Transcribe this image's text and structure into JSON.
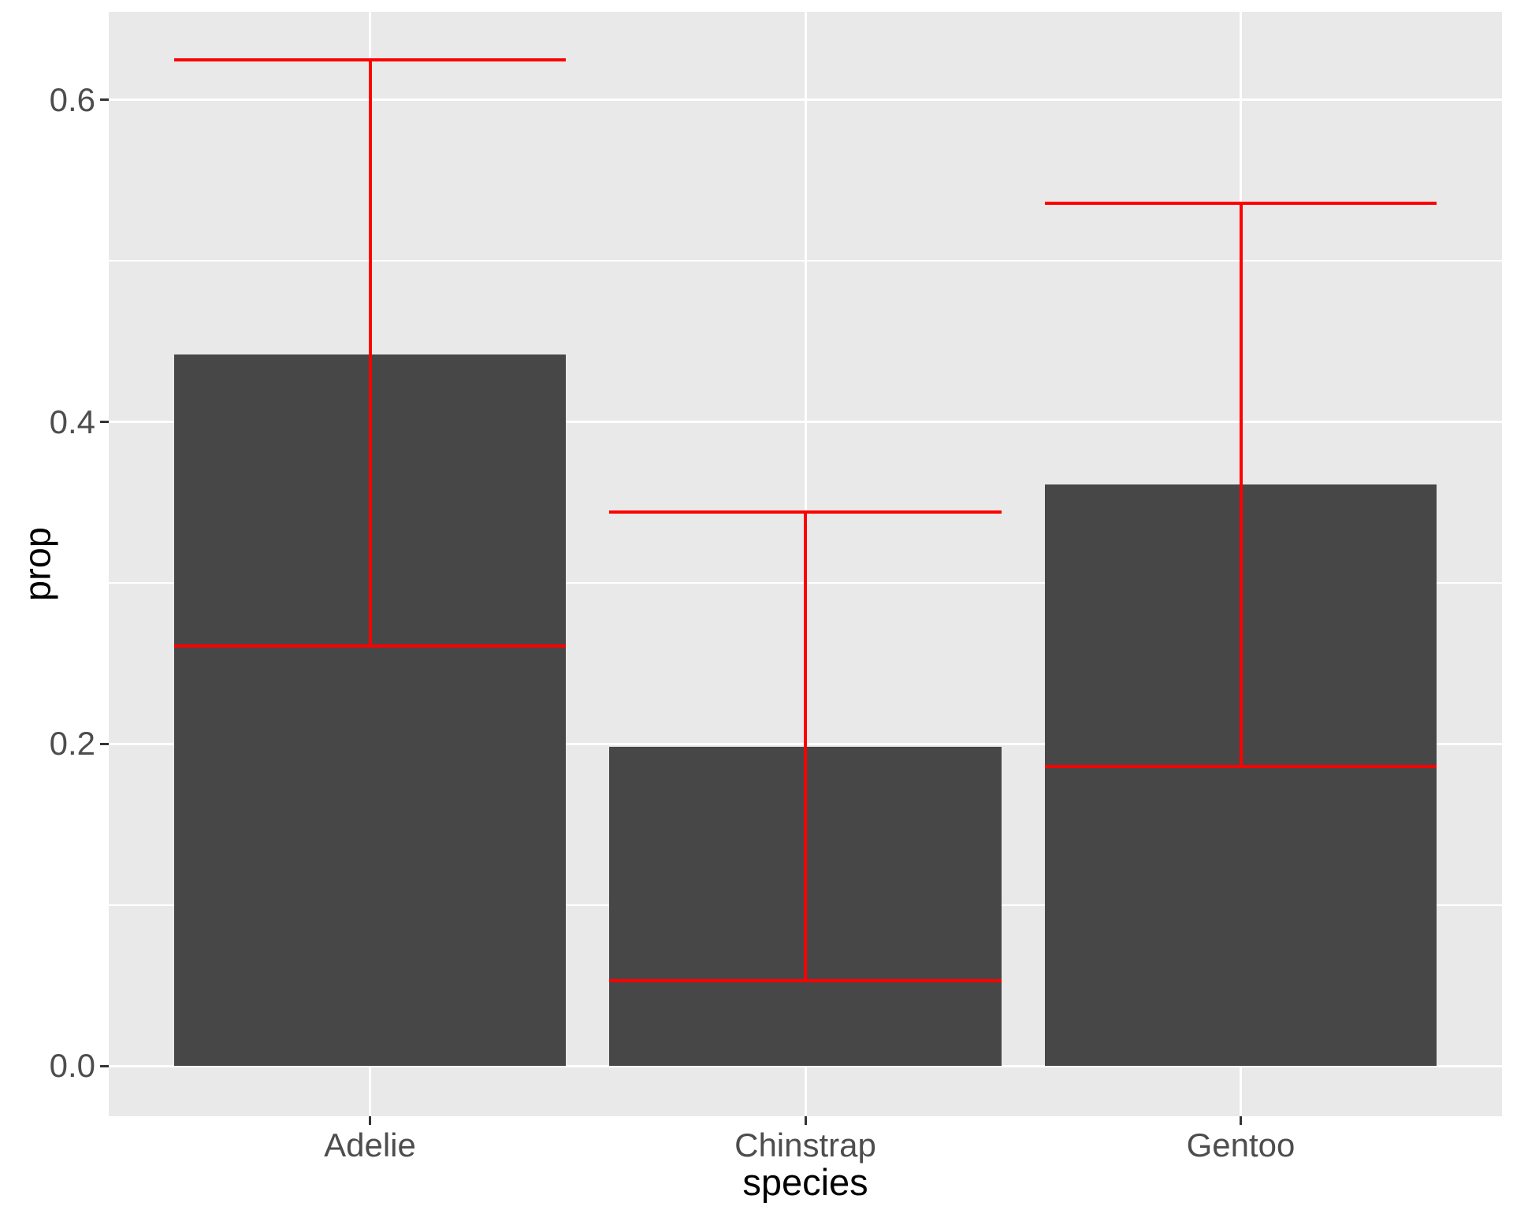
{
  "chart_data": {
    "type": "bar",
    "title": "",
    "xlabel": "species",
    "ylabel": "prop",
    "categories": [
      "Adelie",
      "Chinstrap",
      "Gentoo"
    ],
    "values": [
      0.442,
      0.198,
      0.361
    ],
    "error_bars": {
      "low": [
        0.261,
        0.053,
        0.186
      ],
      "high": [
        0.625,
        0.344,
        0.536
      ],
      "color": "#ff0000"
    },
    "y_ticks": [
      0.0,
      0.2,
      0.4,
      0.6
    ],
    "y_tick_labels": [
      "0.0",
      "0.2",
      "0.4",
      "0.6"
    ],
    "y_minor_gridlines": [
      0.1,
      0.3,
      0.5
    ],
    "ylim": [
      -0.0313,
      0.6548
    ],
    "grid": true,
    "legend": "none",
    "bar_fill": "#474747",
    "panel_bg": "#e9e9e9",
    "grid_color": "#ffffff",
    "axis_text_color": "#4d4d4d",
    "axis_title_color": "#000000",
    "tick_mark_color": "#333333"
  }
}
